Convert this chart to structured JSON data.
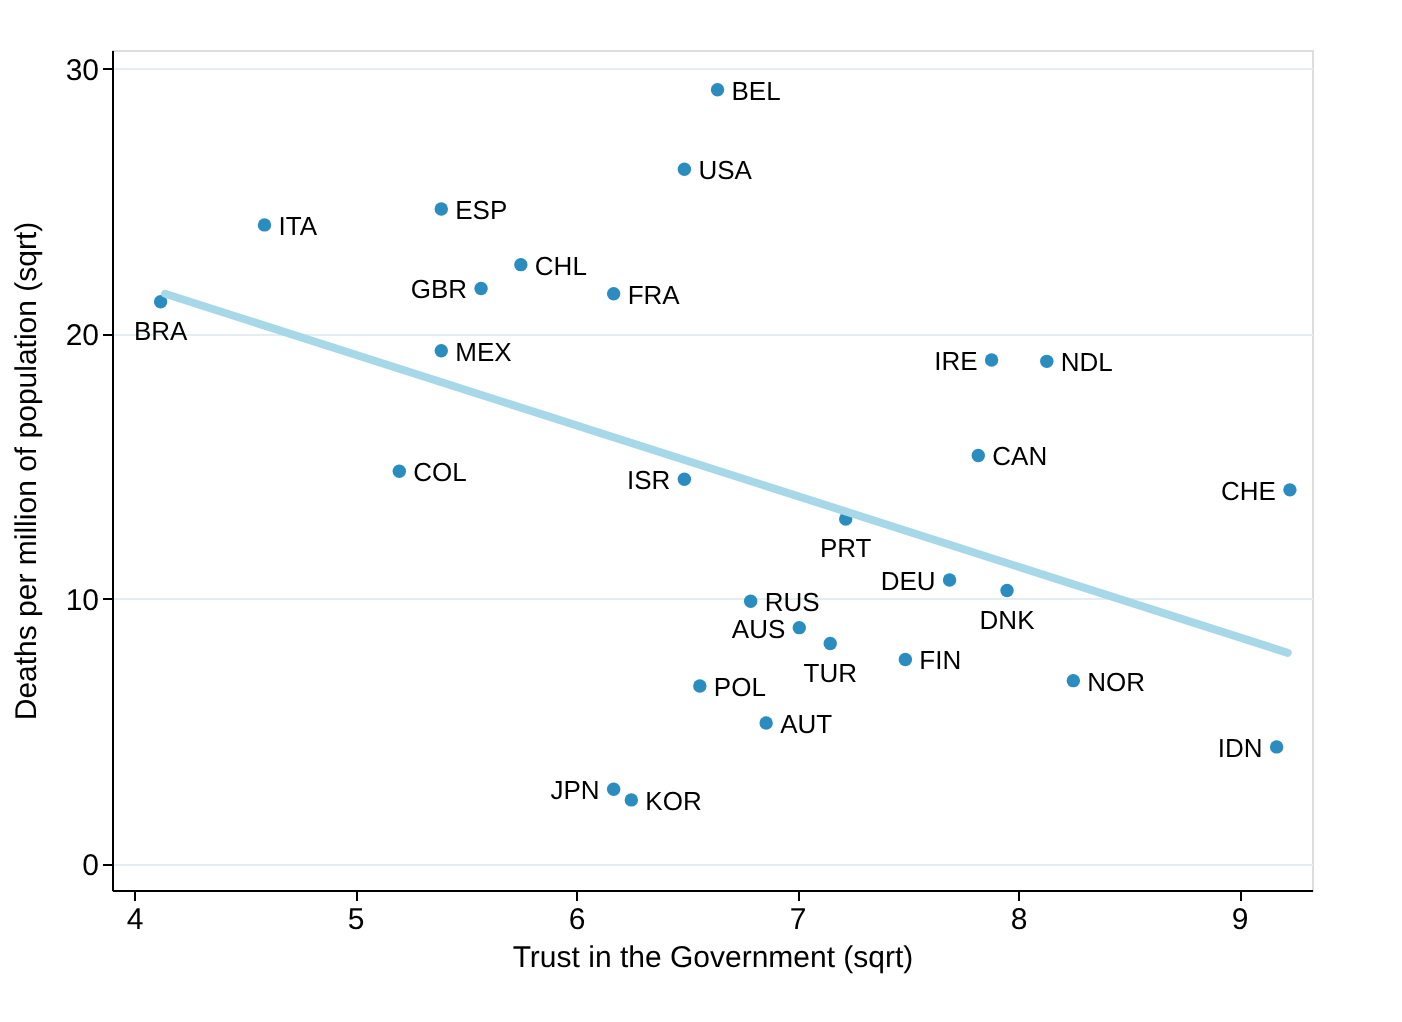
{
  "chart_data": {
    "type": "scatter",
    "xlabel": "Trust in the Government (sqrt)",
    "ylabel": "Deaths per million of population (sqrt)",
    "xlim": [
      3.9,
      9.33
    ],
    "ylim": [
      -1,
      30.7
    ],
    "xticks": [
      4,
      5,
      6,
      7,
      8,
      9
    ],
    "yticks": [
      0,
      10,
      20,
      30
    ],
    "grid": "y",
    "series": [
      {
        "color": "#2a8cbf",
        "marker": "circle",
        "x": [
          6.64,
          6.49,
          6.17,
          7.88,
          8.13,
          7.82,
          9.23,
          6.49,
          4.59,
          5.39,
          5.75,
          5.57,
          4.12,
          5.39,
          5.2,
          7.22,
          7.69,
          7.95,
          6.79,
          7.01,
          7.15,
          7.49,
          6.56,
          8.25,
          6.86,
          9.17,
          6.17,
          6.25
        ],
        "values": [
          29.2,
          26.2,
          21.5,
          19.0,
          18.95,
          15.4,
          14.1,
          14.5,
          24.1,
          24.7,
          22.6,
          21.7,
          21.2,
          19.35,
          14.8,
          13.0,
          10.7,
          10.3,
          9.9,
          8.9,
          8.3,
          7.7,
          6.7,
          6.9,
          5.3,
          4.4,
          2.8,
          2.4
        ],
        "value_labels": [
          "BEL",
          "USA",
          "FRA",
          "IRE",
          "NDL",
          "CAN",
          "CHE",
          "ISR",
          "ITA",
          "ESP",
          "CHL",
          "GBR",
          "BRA",
          "MEX",
          "COL",
          "PRT",
          "DEU",
          "DNK",
          "RUS",
          "AUS",
          "TUR",
          "FIN",
          "POL",
          "NOR",
          "AUT",
          "IDN",
          "JPN",
          "KOR"
        ]
      },
      {
        "type": "line",
        "color": "#a6d8e8",
        "x": [
          4.14,
          9.22
        ],
        "values": [
          21.5,
          7.95
        ]
      }
    ]
  }
}
